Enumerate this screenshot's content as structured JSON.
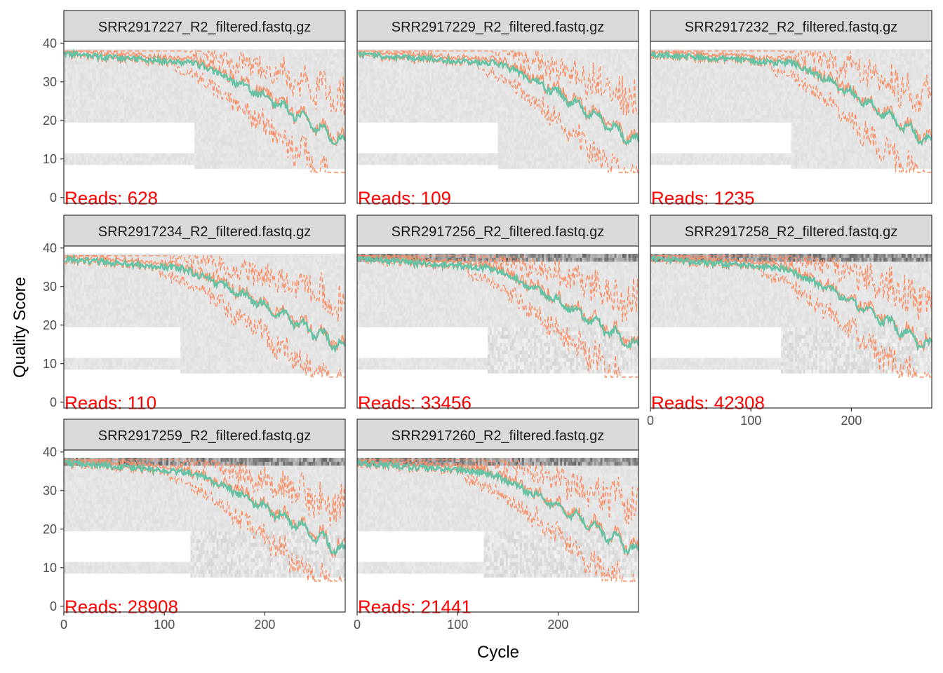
{
  "chart_data": {
    "type": "line",
    "facet_layout": "3x3 grid, 8 panels",
    "xlabel": "Cycle",
    "ylabel": "Quality Score",
    "xlim": [
      0,
      280
    ],
    "ylim": [
      0,
      40
    ],
    "x_ticks": [
      0,
      100,
      200
    ],
    "y_ticks": [
      0,
      10,
      20,
      30,
      40
    ],
    "grid": false,
    "colors": {
      "mean": "#66c2a5",
      "quantile": "#fc8d62",
      "reads_label": "#ff0000",
      "heatmap_low": "#f2f2f2",
      "heatmap_high": "#000000",
      "strip_bg": "#d9d9d9"
    },
    "reads_prefix": "Reads:  ",
    "panels": [
      {
        "title": "SRR2917227_R2_filtered.fastq.gz",
        "reads": "628",
        "n": 628,
        "drop": 130
      },
      {
        "title": "SRR2917229_R2_filtered.fastq.gz",
        "reads": "109",
        "n": 109,
        "drop": 140
      },
      {
        "title": "SRR2917232_R2_filtered.fastq.gz",
        "reads": "1235",
        "n": 1235,
        "drop": 140
      },
      {
        "title": "SRR2917234_R2_filtered.fastq.gz",
        "reads": "110",
        "n": 110,
        "drop": 115
      },
      {
        "title": "SRR2917256_R2_filtered.fastq.gz",
        "reads": "33456",
        "n": 33456,
        "drop": 130
      },
      {
        "title": "SRR2917258_R2_filtered.fastq.gz",
        "reads": "42308",
        "n": 42308,
        "drop": 130
      },
      {
        "title": "SRR2917259_R2_filtered.fastq.gz",
        "reads": "28908",
        "n": 28908,
        "drop": 125
      },
      {
        "title": "SRR2917260_R2_filtered.fastq.gz",
        "reads": "21441",
        "n": 21441,
        "drop": 125
      }
    ]
  }
}
